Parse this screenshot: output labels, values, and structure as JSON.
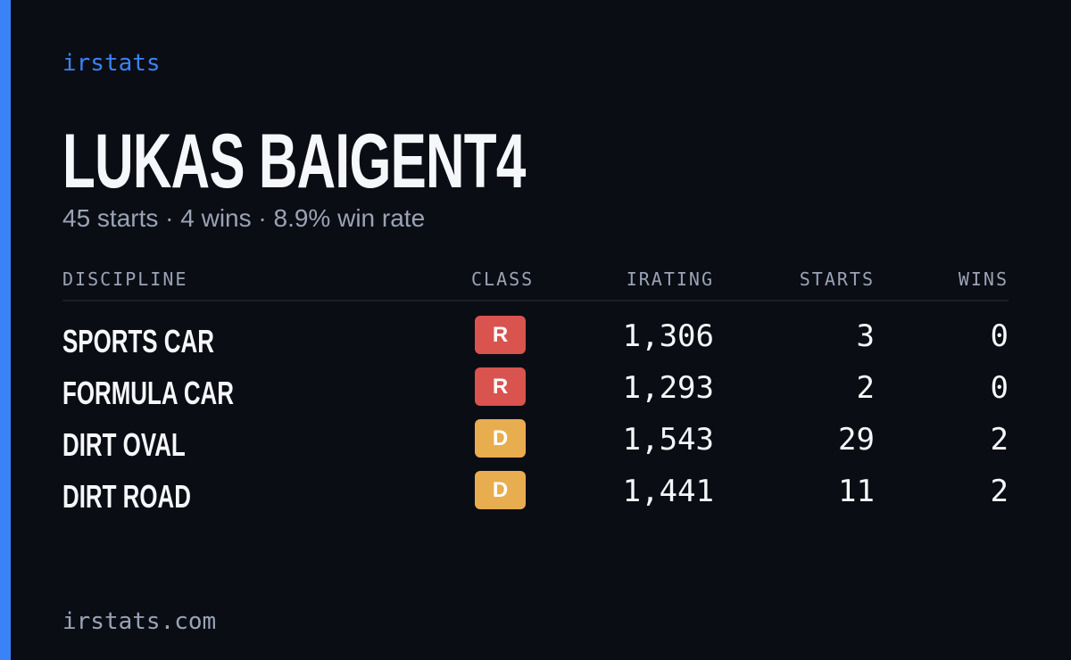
{
  "brand": "irstats",
  "header": {
    "title": "LUKAS BAIGENT4",
    "subtitle": "45 starts · 4 wins · 8.9% win rate"
  },
  "table": {
    "columns": [
      "DISCIPLINE",
      "CLASS",
      "IRATING",
      "STARTS",
      "WINS"
    ],
    "rows": [
      [
        "SPORTS CAR",
        "R",
        "1,306",
        "3",
        "0"
      ],
      [
        "FORMULA CAR",
        "R",
        "1,293",
        "2",
        "0"
      ],
      [
        "DIRT OVAL",
        "D",
        "1,543",
        "29",
        "2"
      ],
      [
        "DIRT ROAD",
        "D",
        "1,441",
        "11",
        "2"
      ]
    ]
  },
  "footer": "irstats.com"
}
